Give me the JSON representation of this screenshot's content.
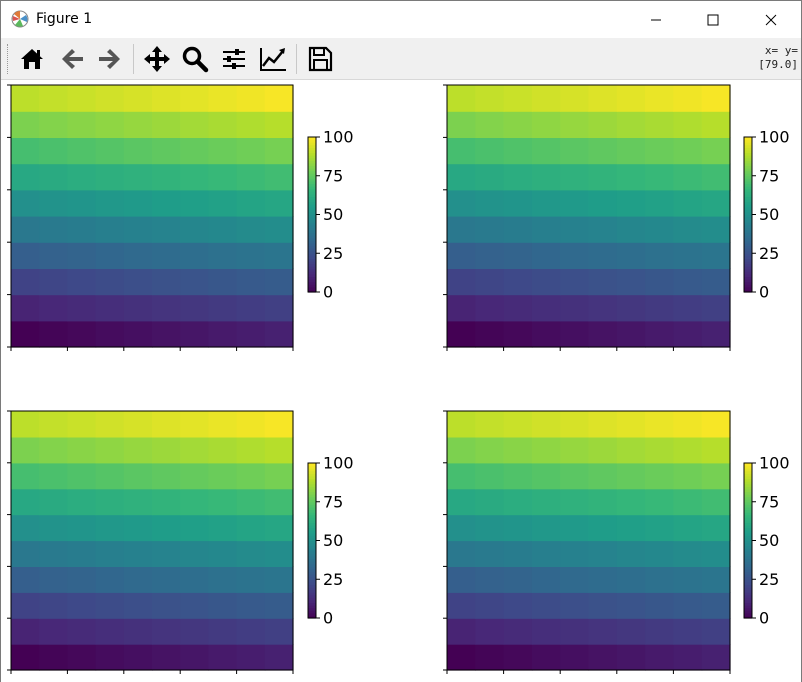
{
  "window": {
    "title": "Figure 1",
    "minimize_label": "Minimize",
    "maximize_label": "Maximize",
    "close_label": "Close"
  },
  "toolbar": {
    "buttons": [
      {
        "icon": "home-icon"
      },
      {
        "icon": "back-arrow-icon"
      },
      {
        "icon": "forward-arrow-icon"
      },
      {
        "icon": "pan-icon"
      },
      {
        "icon": "zoom-icon"
      },
      {
        "icon": "configure-subplots-icon"
      },
      {
        "icon": "edit-axis-icon"
      },
      {
        "icon": "save-icon"
      }
    ],
    "coords_line1": "x= y=",
    "coords_line2": "[79.0]"
  },
  "colors": {
    "viridis": [
      "#440154",
      "#482878",
      "#3e4a89",
      "#31688e",
      "#26828e",
      "#1f9e89",
      "#35b779",
      "#6ece58",
      "#b5de2b",
      "#fde725"
    ]
  },
  "chart_data": [
    {
      "type": "heatmap",
      "colormap": "viridis",
      "rows": 10,
      "cols": 10,
      "values_row_bottom_to_top": [
        [
          0,
          1,
          2,
          3,
          4,
          5,
          6,
          7,
          8,
          9
        ],
        [
          10,
          11,
          12,
          13,
          14,
          15,
          16,
          17,
          18,
          19
        ],
        [
          20,
          21,
          22,
          23,
          24,
          25,
          26,
          27,
          28,
          29
        ],
        [
          30,
          31,
          32,
          33,
          34,
          35,
          36,
          37,
          38,
          39
        ],
        [
          40,
          41,
          42,
          43,
          44,
          45,
          46,
          47,
          48,
          49
        ],
        [
          50,
          51,
          52,
          53,
          54,
          55,
          56,
          57,
          58,
          59
        ],
        [
          60,
          61,
          62,
          63,
          64,
          65,
          66,
          67,
          68,
          69
        ],
        [
          70,
          71,
          72,
          73,
          74,
          75,
          76,
          77,
          78,
          79
        ],
        [
          80,
          81,
          82,
          83,
          84,
          85,
          86,
          87,
          88,
          89
        ],
        [
          90,
          91,
          92,
          93,
          94,
          95,
          96,
          97,
          98,
          99
        ]
      ],
      "colorbar": {
        "ticks": [
          "100",
          "75",
          "50",
          "25",
          "0"
        ],
        "range": [
          0,
          100
        ]
      }
    },
    {
      "type": "heatmap",
      "colormap": "viridis",
      "rows": 10,
      "cols": 10,
      "values_row_bottom_to_top": [
        [
          0,
          1,
          2,
          3,
          4,
          5,
          6,
          7,
          8,
          9
        ],
        [
          10,
          11,
          12,
          13,
          14,
          15,
          16,
          17,
          18,
          19
        ],
        [
          20,
          21,
          22,
          23,
          24,
          25,
          26,
          27,
          28,
          29
        ],
        [
          30,
          31,
          32,
          33,
          34,
          35,
          36,
          37,
          38,
          39
        ],
        [
          40,
          41,
          42,
          43,
          44,
          45,
          46,
          47,
          48,
          49
        ],
        [
          50,
          51,
          52,
          53,
          54,
          55,
          56,
          57,
          58,
          59
        ],
        [
          60,
          61,
          62,
          63,
          64,
          65,
          66,
          67,
          68,
          69
        ],
        [
          70,
          71,
          72,
          73,
          74,
          75,
          76,
          77,
          78,
          79
        ],
        [
          80,
          81,
          82,
          83,
          84,
          85,
          86,
          87,
          88,
          89
        ],
        [
          90,
          91,
          92,
          93,
          94,
          95,
          96,
          97,
          98,
          99
        ]
      ],
      "colorbar": {
        "ticks": [
          "100",
          "75",
          "50",
          "25",
          "0"
        ],
        "range": [
          0,
          100
        ]
      }
    },
    {
      "type": "heatmap",
      "colormap": "viridis",
      "rows": 10,
      "cols": 10,
      "values_row_bottom_to_top": [
        [
          0,
          1,
          2,
          3,
          4,
          5,
          6,
          7,
          8,
          9
        ],
        [
          10,
          11,
          12,
          13,
          14,
          15,
          16,
          17,
          18,
          19
        ],
        [
          20,
          21,
          22,
          23,
          24,
          25,
          26,
          27,
          28,
          29
        ],
        [
          30,
          31,
          32,
          33,
          34,
          35,
          36,
          37,
          38,
          39
        ],
        [
          40,
          41,
          42,
          43,
          44,
          45,
          46,
          47,
          48,
          49
        ],
        [
          50,
          51,
          52,
          53,
          54,
          55,
          56,
          57,
          58,
          59
        ],
        [
          60,
          61,
          62,
          63,
          64,
          65,
          66,
          67,
          68,
          69
        ],
        [
          70,
          71,
          72,
          73,
          74,
          75,
          76,
          77,
          78,
          79
        ],
        [
          80,
          81,
          82,
          83,
          84,
          85,
          86,
          87,
          88,
          89
        ],
        [
          90,
          91,
          92,
          93,
          94,
          95,
          96,
          97,
          98,
          99
        ]
      ],
      "colorbar": {
        "ticks": [
          "100",
          "75",
          "50",
          "25",
          "0"
        ],
        "range": [
          0,
          100
        ]
      }
    },
    {
      "type": "heatmap",
      "colormap": "viridis",
      "rows": 10,
      "cols": 10,
      "values_row_bottom_to_top": [
        [
          0,
          1,
          2,
          3,
          4,
          5,
          6,
          7,
          8,
          9
        ],
        [
          10,
          11,
          12,
          13,
          14,
          15,
          16,
          17,
          18,
          19
        ],
        [
          20,
          21,
          22,
          23,
          24,
          25,
          26,
          27,
          28,
          29
        ],
        [
          30,
          31,
          32,
          33,
          34,
          35,
          36,
          37,
          38,
          39
        ],
        [
          40,
          41,
          42,
          43,
          44,
          45,
          46,
          47,
          48,
          49
        ],
        [
          50,
          51,
          52,
          53,
          54,
          55,
          56,
          57,
          58,
          59
        ],
        [
          60,
          61,
          62,
          63,
          64,
          65,
          66,
          67,
          68,
          69
        ],
        [
          70,
          71,
          72,
          73,
          74,
          75,
          76,
          77,
          78,
          79
        ],
        [
          80,
          81,
          82,
          83,
          84,
          85,
          86,
          87,
          88,
          89
        ],
        [
          90,
          91,
          92,
          93,
          94,
          95,
          96,
          97,
          98,
          99
        ]
      ],
      "colorbar": {
        "ticks": [
          "100",
          "75",
          "50",
          "25",
          "0"
        ],
        "range": [
          0,
          100
        ]
      }
    }
  ]
}
